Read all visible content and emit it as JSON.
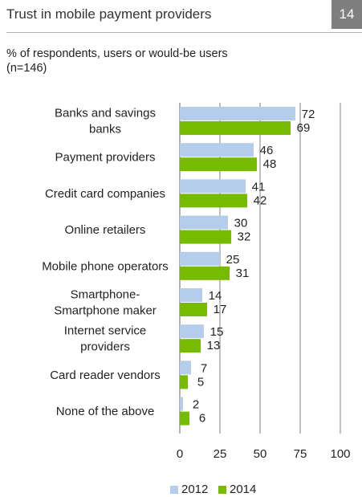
{
  "header": {
    "title": "Trust in mobile payment providers",
    "page_number": "14"
  },
  "subtitle": {
    "line1": "% of respondents, users or would-be users",
    "line2": "(n=146)"
  },
  "colors": {
    "series_2012": "#b4cdea",
    "series_2014": "#77bb00",
    "gridline": "#7f7f7f"
  },
  "chart_data": {
    "type": "bar",
    "orientation": "horizontal",
    "categories": [
      [
        "Banks and savings",
        "banks"
      ],
      [
        "Payment providers"
      ],
      [
        "Credit card companies"
      ],
      [
        "Online retailers"
      ],
      [
        "Mobile phone operators"
      ],
      [
        "Smartphone-",
        "Smartphone maker"
      ],
      [
        "Internet service",
        "providers"
      ],
      [
        "Card reader vendors"
      ],
      [
        "None of the above"
      ]
    ],
    "series": [
      {
        "name": "2012",
        "values": [
          72,
          46,
          41,
          30,
          25,
          14,
          15,
          7,
          2
        ]
      },
      {
        "name": "2014",
        "values": [
          69,
          48,
          42,
          32,
          31,
          17,
          13,
          5,
          6
        ]
      }
    ],
    "xlim": [
      0,
      100
    ],
    "xticks": [
      0,
      25,
      50,
      75,
      100
    ],
    "grid": true,
    "legend_position": "bottom"
  }
}
